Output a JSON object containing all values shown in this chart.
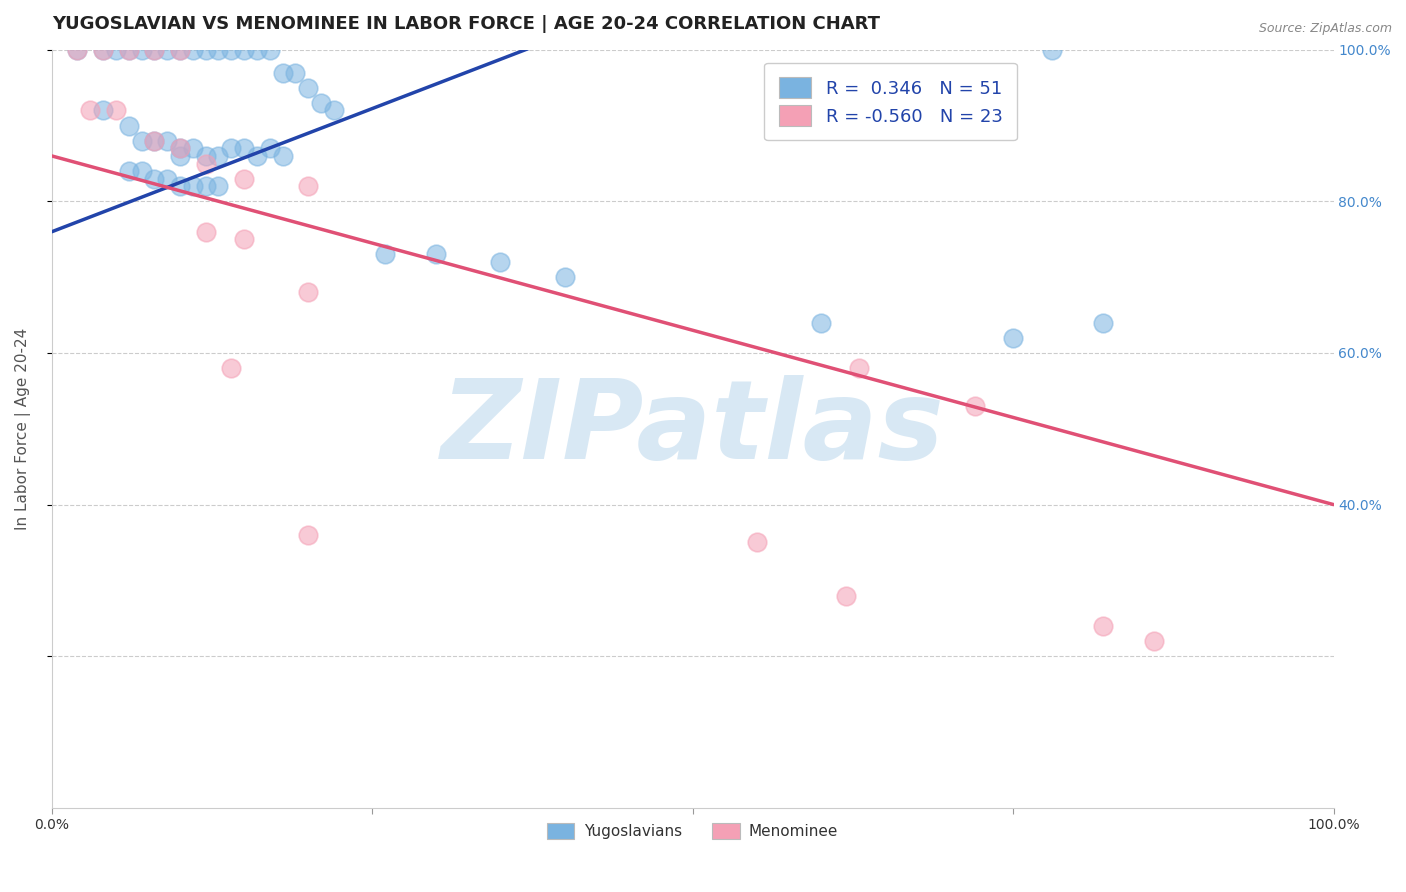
{
  "title": "YUGOSLAVIAN VS MENOMINEE IN LABOR FORCE | AGE 20-24 CORRELATION CHART",
  "source_text": "Source: ZipAtlas.com",
  "ylabel": "In Labor Force | Age 20-24",
  "xlabel": "",
  "xlim": [
    0.0,
    1.0
  ],
  "ylim": [
    0.0,
    1.0
  ],
  "background_color": "#ffffff",
  "grid_color": "#cccccc",
  "watermark": "ZIPatlas",
  "watermark_color": "#c8dff0",
  "blue_color": "#7ab3e0",
  "pink_color": "#f4a0b5",
  "blue_line_color": "#2244aa",
  "pink_line_color": "#e05075",
  "legend_r_blue": "0.346",
  "legend_n_blue": "51",
  "legend_r_pink": "-0.560",
  "legend_n_pink": "23",
  "blue_dots": [
    [
      0.02,
      1.0
    ],
    [
      0.04,
      1.0
    ],
    [
      0.05,
      1.0
    ],
    [
      0.06,
      1.0
    ],
    [
      0.07,
      1.0
    ],
    [
      0.08,
      1.0
    ],
    [
      0.09,
      1.0
    ],
    [
      0.1,
      1.0
    ],
    [
      0.11,
      1.0
    ],
    [
      0.12,
      1.0
    ],
    [
      0.13,
      1.0
    ],
    [
      0.14,
      1.0
    ],
    [
      0.15,
      1.0
    ],
    [
      0.16,
      1.0
    ],
    [
      0.17,
      1.0
    ],
    [
      0.18,
      0.97
    ],
    [
      0.19,
      0.97
    ],
    [
      0.2,
      0.95
    ],
    [
      0.21,
      0.93
    ],
    [
      0.22,
      0.92
    ],
    [
      0.04,
      0.92
    ],
    [
      0.06,
      0.9
    ],
    [
      0.07,
      0.88
    ],
    [
      0.08,
      0.88
    ],
    [
      0.09,
      0.88
    ],
    [
      0.1,
      0.87
    ],
    [
      0.1,
      0.86
    ],
    [
      0.11,
      0.87
    ],
    [
      0.12,
      0.86
    ],
    [
      0.13,
      0.86
    ],
    [
      0.14,
      0.87
    ],
    [
      0.15,
      0.87
    ],
    [
      0.16,
      0.86
    ],
    [
      0.17,
      0.87
    ],
    [
      0.18,
      0.86
    ],
    [
      0.06,
      0.84
    ],
    [
      0.07,
      0.84
    ],
    [
      0.08,
      0.83
    ],
    [
      0.09,
      0.83
    ],
    [
      0.1,
      0.82
    ],
    [
      0.11,
      0.82
    ],
    [
      0.12,
      0.82
    ],
    [
      0.13,
      0.82
    ],
    [
      0.26,
      0.73
    ],
    [
      0.3,
      0.73
    ],
    [
      0.35,
      0.72
    ],
    [
      0.4,
      0.7
    ],
    [
      0.6,
      0.64
    ],
    [
      0.75,
      0.62
    ],
    [
      0.78,
      1.0
    ],
    [
      0.82,
      0.64
    ]
  ],
  "pink_dots": [
    [
      0.02,
      1.0
    ],
    [
      0.04,
      1.0
    ],
    [
      0.06,
      1.0
    ],
    [
      0.08,
      1.0
    ],
    [
      0.1,
      1.0
    ],
    [
      0.03,
      0.92
    ],
    [
      0.05,
      0.92
    ],
    [
      0.08,
      0.88
    ],
    [
      0.1,
      0.87
    ],
    [
      0.12,
      0.85
    ],
    [
      0.15,
      0.83
    ],
    [
      0.2,
      0.82
    ],
    [
      0.12,
      0.76
    ],
    [
      0.15,
      0.75
    ],
    [
      0.2,
      0.68
    ],
    [
      0.14,
      0.58
    ],
    [
      0.2,
      0.36
    ],
    [
      0.63,
      0.58
    ],
    [
      0.72,
      0.53
    ],
    [
      0.55,
      0.35
    ],
    [
      0.62,
      0.28
    ],
    [
      0.82,
      0.24
    ],
    [
      0.86,
      0.22
    ]
  ],
  "blue_line": {
    "x0": 0.0,
    "y0": 0.76,
    "x1": 0.4,
    "y1": 1.02
  },
  "pink_line": {
    "x0": 0.0,
    "y0": 0.86,
    "x1": 1.0,
    "y1": 0.4
  },
  "title_fontsize": 13,
  "label_fontsize": 11,
  "tick_fontsize": 10,
  "legend_fontsize": 13
}
